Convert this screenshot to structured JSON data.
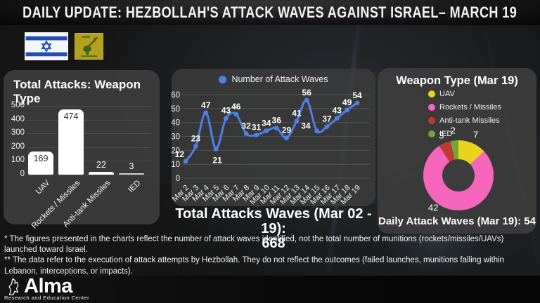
{
  "header": {
    "title": "DAILY UPDATE: HEZBOLLAH'S ATTACK WAVES AGAINST ISRAEL– MARCH 19"
  },
  "icons": {
    "flag_left": "israel-flag",
    "flag_right": "hezbollah-flag"
  },
  "chart_data": [
    {
      "id": "total-attacks-by-weapon-type",
      "type": "bar",
      "title": "Total Attacks: Weapon Type",
      "categories": [
        "UAV",
        "Rockets / Missiles",
        "Anti-tank Missiles",
        "IED"
      ],
      "values": [
        169,
        474,
        22,
        3
      ],
      "ylim": [
        0,
        500
      ],
      "yticks": [
        0,
        100,
        200,
        300,
        400,
        500
      ],
      "bar_color": "#ffffff",
      "grid": true
    },
    {
      "id": "attack-waves-per-day",
      "type": "line",
      "legend": "Number of Attack Waves",
      "legend_position": "top",
      "categories": [
        "Mar 2",
        "Mar 3",
        "Mar 4",
        "Mar 5",
        "Mar 6",
        "Mar 7",
        "Mar 8",
        "Mar 9",
        "Mar 10",
        "Mar 11",
        "Mar 12",
        "Mar 13",
        "Mar 14",
        "Mar 15",
        "Mar 16",
        "Mar 17",
        "Mar 18",
        "Mar 19"
      ],
      "values": [
        12,
        23,
        47,
        21,
        43,
        46,
        32,
        31,
        34,
        36,
        29,
        41,
        56,
        34,
        37,
        43,
        49,
        54
      ],
      "ylim": [
        0,
        60
      ],
      "yticks": [
        0,
        10,
        20,
        30,
        40,
        50,
        60
      ],
      "line_color": "#4d80ea",
      "grid": true
    },
    {
      "id": "weapon-type-mar-19",
      "type": "pie",
      "donut": true,
      "title": "Weapon Type (Mar 19)",
      "labels": [
        "UAV",
        "Rockets / Missiles",
        "Anti-tank Missiles",
        "IED"
      ],
      "values": [
        7,
        42,
        3,
        2
      ],
      "colors": [
        "#e8d51b",
        "#f666bd",
        "#bf3b32",
        "#72a437"
      ],
      "legend_position": "top",
      "order": "clockwise-from-top"
    }
  ],
  "totals": {
    "mid_line1": "Total Attacks Waves (Mar 02 - 19):",
    "mid_value": "668",
    "daily": "Daily Attack Waves (Mar 19): 54"
  },
  "footnotes": [
    "* The figures presented in the charts reflect the number of attack waves identified, not the total number of munitions (rockets/missiles/UAVs) launched toward Israel.",
    "** The data refer to the execution of attack attempts by Hezbollah. They do not reflect the outcomes (failed launches, munitions falling within Lebanon, interceptions, or impacts)."
  ],
  "logo": {
    "name": "Alma",
    "tagline": "Research and Education Center"
  }
}
